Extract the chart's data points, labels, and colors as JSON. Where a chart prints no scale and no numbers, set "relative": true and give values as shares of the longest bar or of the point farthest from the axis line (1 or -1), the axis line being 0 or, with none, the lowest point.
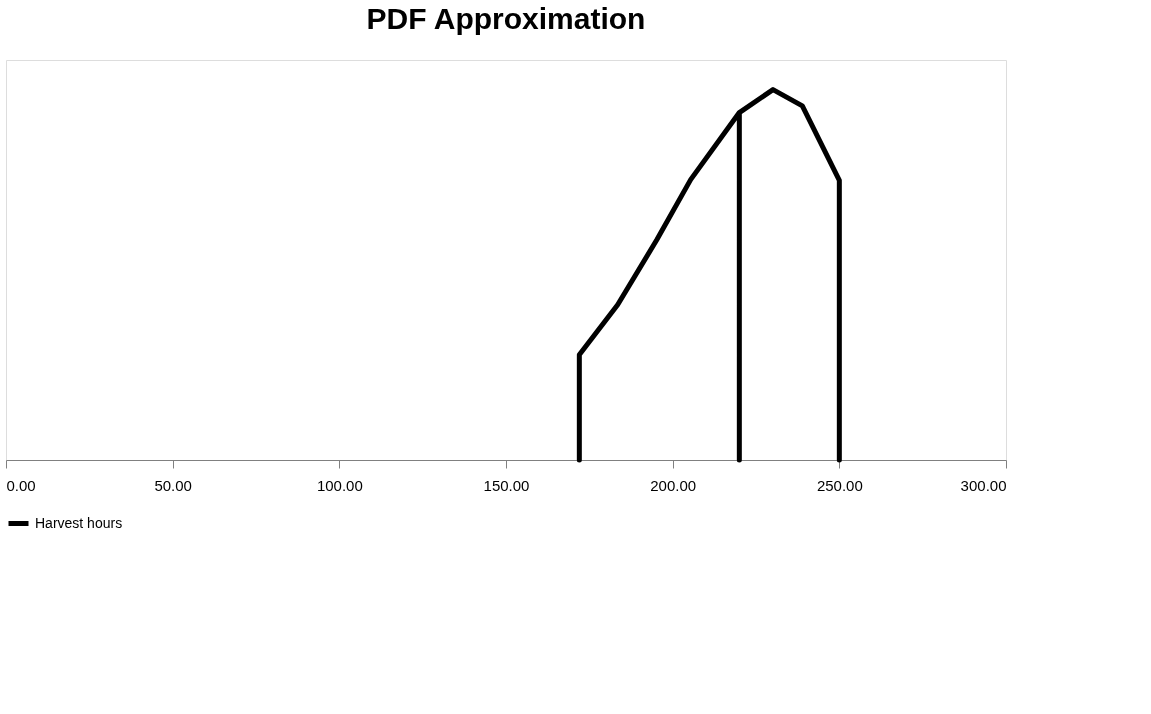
{
  "chart_data": {
    "type": "line",
    "title": "PDF Approximation",
    "relative": true,
    "x": [
      172,
      172,
      183.5,
      195.2,
      205.4,
      220,
      220,
      220,
      230.1,
      238.9,
      250,
      250
    ],
    "series": [
      {
        "name": "Harvest hours",
        "color": "#000000",
        "values": [
          0,
          0.284,
          0.419,
          0.594,
          0.757,
          0.938,
          0,
          0.938,
          1,
          0.956,
          0.755,
          0
        ]
      }
    ],
    "xlim": [
      0,
      300
    ],
    "xticks": [
      {
        "value": 0,
        "label": "0.00"
      },
      {
        "value": 50,
        "label": "50.00"
      },
      {
        "value": 100,
        "label": "100.00"
      },
      {
        "value": 150,
        "label": "150.00"
      },
      {
        "value": 200,
        "label": "200.00"
      },
      {
        "value": 250,
        "label": "250.00"
      },
      {
        "value": 300,
        "label": "300.00"
      }
    ],
    "grid": false,
    "legend": "bottom",
    "marker": "none",
    "line_style": "solid"
  }
}
